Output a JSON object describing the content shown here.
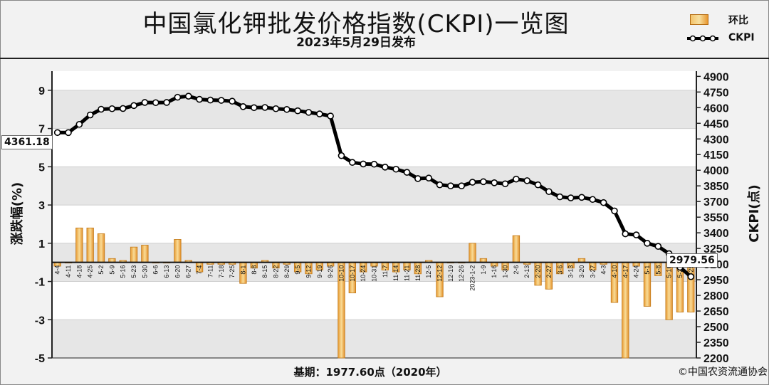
{
  "header": {
    "title": "中国氯化钾批发价格指数(CKPI)一览图",
    "subtitle": "2023年5月29日发布"
  },
  "legend": {
    "bar_label": "环比",
    "line_label": "CKPI"
  },
  "callouts": {
    "start_value": "4361.18",
    "end_value": "2979.56"
  },
  "footer": {
    "base_note": "基期：1977.60点（2020年）",
    "copyright": "©中国农资流通协会"
  },
  "colors": {
    "bar_fill": "#f0b75a",
    "bar_edge": "#c27a1a",
    "line": "#000000",
    "marker_fill": "#ffffff",
    "plot_band": "#e6e6e6",
    "plot_bg": "#ffffff"
  },
  "chart_data": {
    "type": "bar+line",
    "title": "中国氯化钾批发价格指数(CKPI)一览图",
    "subtitle": "2023年5月29日发布",
    "ylabel_left": "涨跌幅(%)",
    "ylabel_right": "CKPI(点)",
    "ylim_left": [
      -5,
      10
    ],
    "yticks_left": [
      9,
      7,
      5,
      3,
      1,
      -1,
      -3,
      -5
    ],
    "ylim_right": [
      2200,
      4950
    ],
    "yticks_right": [
      4900,
      4750,
      4600,
      4450,
      4300,
      4150,
      4000,
      3850,
      3700,
      3550,
      3400,
      3250,
      3100,
      2950,
      2800,
      2650,
      2500,
      2350,
      2200
    ],
    "grid": "horizontal bands",
    "legend_position": "top-right",
    "categories": [
      "4-4",
      "4-11",
      "4-18",
      "4-25",
      "5-2",
      "5-9",
      "5-16",
      "5-23",
      "5-30",
      "6-6",
      "6-13",
      "6-20",
      "6-27",
      "7-4",
      "7-11",
      "7-18",
      "7-25",
      "8-1",
      "8-8",
      "8-15",
      "8-22",
      "8-29",
      "9-5",
      "9-12",
      "9-19",
      "9-26",
      "10-10",
      "10-17",
      "10-24",
      "10-31",
      "11-7",
      "11-14",
      "11-21",
      "11-28",
      "12-5",
      "12-12",
      "12-19",
      "12-26",
      "2023-1-2",
      "1-9",
      "1-16",
      "1-30",
      "2-6",
      "2-13",
      "2-20",
      "2-27",
      "3-6",
      "3-13",
      "3-20",
      "3-27",
      "4-3",
      "4-10",
      "4-17",
      "4-24",
      "5-1",
      "5-8",
      "5-16",
      "5-22",
      "5-29"
    ],
    "series": [
      {
        "name": "环比",
        "kind": "bar",
        "axis": "left",
        "values": [
          -0.2,
          0.0,
          1.8,
          1.8,
          1.5,
          0.2,
          0.1,
          0.8,
          0.9,
          0.0,
          0.0,
          1.2,
          0.1,
          -0.5,
          -0.1,
          -0.1,
          -0.1,
          -1.1,
          -0.3,
          0.1,
          -0.3,
          -0.1,
          -0.5,
          -0.6,
          -0.4,
          -0.2,
          -5.0,
          -1.6,
          -0.5,
          -0.2,
          -0.4,
          -0.5,
          -0.4,
          -0.6,
          0.1,
          -1.8,
          0.0,
          0.0,
          1.0,
          0.2,
          -0.2,
          -0.4,
          1.4,
          -0.1,
          -1.2,
          -1.4,
          -0.6,
          -0.3,
          0.2,
          -0.4,
          -0.1,
          -2.1,
          -5.0,
          -0.2,
          -2.3,
          -0.7,
          -3.0,
          -2.6,
          -2.6
        ]
      },
      {
        "name": "CKPI",
        "kind": "line",
        "axis": "right",
        "values": [
          4361.18,
          4361,
          4440,
          4530,
          4585,
          4590,
          4592,
          4620,
          4650,
          4648,
          4650,
          4700,
          4710,
          4680,
          4673,
          4670,
          4662,
          4610,
          4600,
          4602,
          4590,
          4583,
          4570,
          4555,
          4540,
          4520,
          4140,
          4075,
          4060,
          4058,
          4030,
          4010,
          3980,
          3920,
          3925,
          3860,
          3850,
          3850,
          3885,
          3890,
          3880,
          3870,
          3915,
          3900,
          3860,
          3795,
          3745,
          3735,
          3740,
          3720,
          3690,
          3610,
          3390,
          3380,
          3300,
          3270,
          3200,
          3070,
          2979.56
        ]
      }
    ]
  }
}
